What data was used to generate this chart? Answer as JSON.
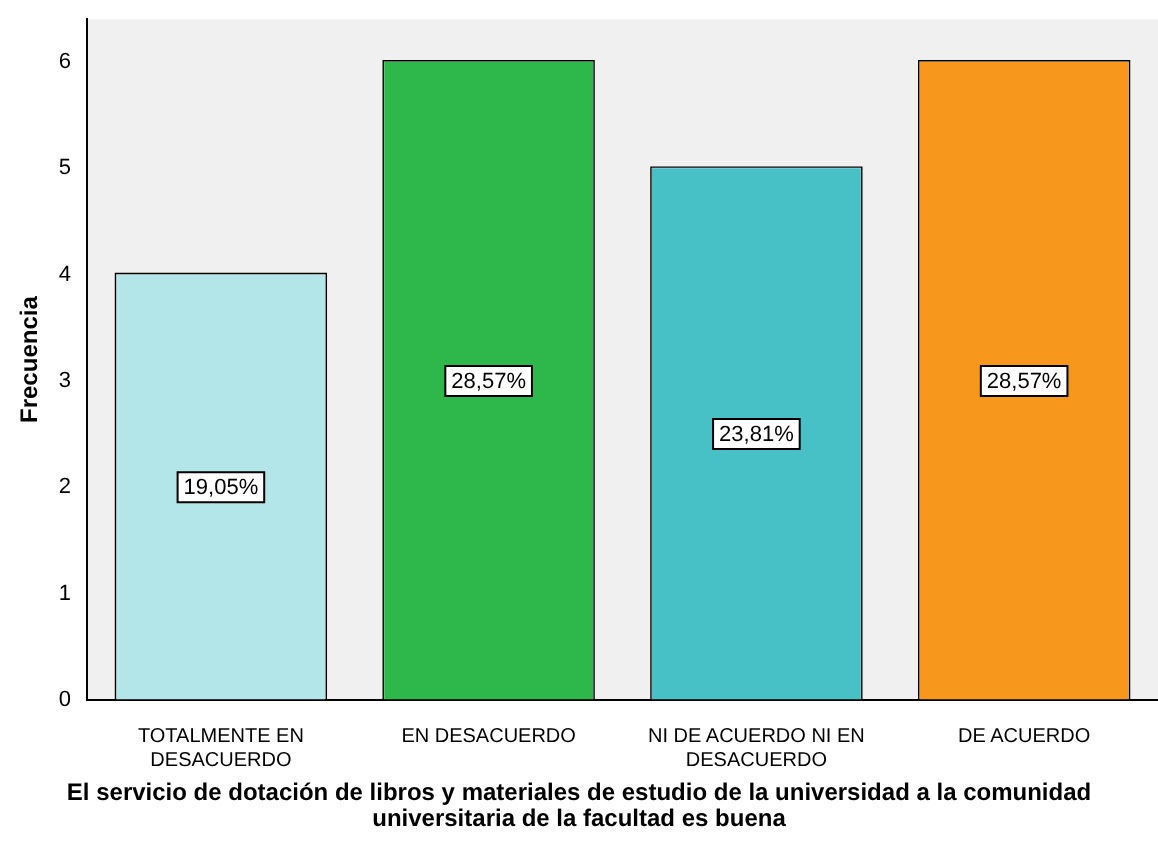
{
  "chart_data": {
    "type": "bar",
    "xlabel": "El servicio de dotación de libros y materiales de estudio de la universidad a la comunidad universitaria de la facultad es buena",
    "ylabel": "Frecuencia",
    "categories": [
      "TOTALMENTE EN DESACUERDO",
      "EN DESACUERDO",
      "NI DE ACUERDO NI EN DESACUERDO",
      "DE ACUERDO"
    ],
    "values": [
      4,
      6,
      5,
      6
    ],
    "colors": [
      "#b3e6e8",
      "#2eb84b",
      "#47c1c6",
      "#f7981c"
    ],
    "annotations": [
      {
        "text": "19,05%",
        "x": "TOTALMENTE EN DESACUERDO",
        "y": 2
      },
      {
        "text": "28,57%",
        "x": "EN DESACUERDO",
        "y": 3
      },
      {
        "text": "23,81%",
        "x": "NI DE ACUERDO NI EN DESACUERDO",
        "y": 2.5
      },
      {
        "text": "28,57%",
        "x": "DE ACUERDO",
        "y": 3
      }
    ],
    "ylim": [
      0,
      6.4
    ],
    "yticks": [
      0,
      1,
      2,
      3,
      4,
      5,
      6
    ],
    "grid": false,
    "legend": false
  }
}
